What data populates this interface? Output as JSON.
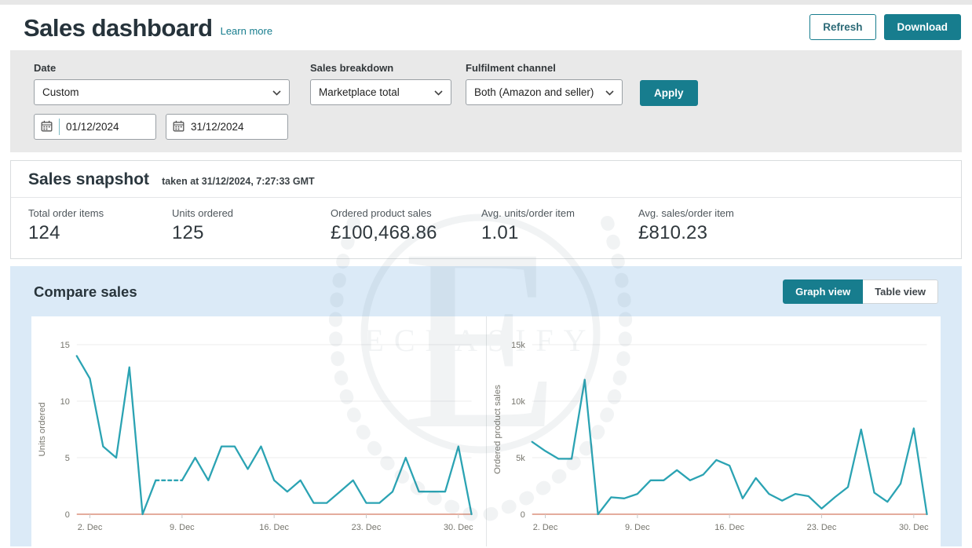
{
  "header": {
    "title": "Sales dashboard",
    "learn_more": "Learn more",
    "refresh_label": "Refresh",
    "download_label": "Download"
  },
  "filters": {
    "date": {
      "label": "Date",
      "selected": "Custom",
      "from": "01/12/2024",
      "to": "31/12/2024"
    },
    "sales_breakdown": {
      "label": "Sales breakdown",
      "selected": "Marketplace total"
    },
    "fulfilment_channel": {
      "label": "Fulfilment channel",
      "selected": "Both (Amazon and seller)"
    },
    "apply_label": "Apply"
  },
  "snapshot": {
    "title": "Sales snapshot",
    "taken_at": "taken at 31/12/2024, 7:27:33 GMT",
    "metrics": [
      {
        "label": "Total order items",
        "value": "124"
      },
      {
        "label": "Units ordered",
        "value": "125"
      },
      {
        "label": "Ordered product sales",
        "value": "£100,468.86"
      },
      {
        "label": "Avg. units/order item",
        "value": "1.01"
      },
      {
        "label": "Avg. sales/order item",
        "value": "£810.23"
      }
    ]
  },
  "compare": {
    "title": "Compare sales",
    "graph_view_label": "Graph view",
    "table_view_label": "Table view"
  },
  "watermark": {
    "monogram": "E",
    "text": "ECLASIFY"
  },
  "colors": {
    "accent": "#177d8e",
    "line": "#2ba3b3",
    "zero_baseline": "#e0a18f",
    "compare_panel_bg": "#dbeaf7",
    "filter_bg": "#e9e9e9"
  },
  "chart_data": [
    {
      "type": "line",
      "title": "Units ordered by day",
      "ylabel": "Units ordered",
      "x_unit": "day of December 2024",
      "x_days": [
        1,
        2,
        3,
        4,
        5,
        6,
        7,
        8,
        9,
        10,
        11,
        12,
        13,
        14,
        15,
        16,
        17,
        18,
        19,
        20,
        21,
        22,
        23,
        24,
        25,
        26,
        27,
        28,
        29,
        30,
        31
      ],
      "values": [
        14,
        12,
        6,
        5,
        13,
        0,
        3,
        3,
        3,
        5,
        3,
        6,
        6,
        4,
        6,
        3,
        2,
        3,
        1,
        1,
        2,
        3,
        1,
        1,
        2,
        5,
        2,
        2,
        2,
        6,
        0
      ],
      "ylim": [
        0,
        15
      ],
      "yticks": [
        {
          "value": 0,
          "label": "0"
        },
        {
          "value": 5,
          "label": "5"
        },
        {
          "value": 10,
          "label": "10"
        },
        {
          "value": 15,
          "label": "15"
        }
      ],
      "xticks": [
        {
          "day": 2,
          "label": "2. Dec"
        },
        {
          "day": 9,
          "label": "9. Dec"
        },
        {
          "day": 16,
          "label": "16. Dec"
        },
        {
          "day": 23,
          "label": "23. Dec"
        },
        {
          "day": 30,
          "label": "30. Dec"
        }
      ],
      "dashed_index_ranges": [
        [
          6,
          8
        ]
      ],
      "line_color": "#2ba3b3",
      "baseline_color": "#e0a18f",
      "grid": true,
      "legend": "none"
    },
    {
      "type": "line",
      "title": "Ordered product sales by day",
      "ylabel": "Ordered product sales",
      "x_unit": "day of December 2024",
      "x_days": [
        1,
        2,
        3,
        4,
        5,
        6,
        7,
        8,
        9,
        10,
        11,
        12,
        13,
        14,
        15,
        16,
        17,
        18,
        19,
        20,
        21,
        22,
        23,
        24,
        25,
        26,
        27,
        28,
        29,
        30,
        31
      ],
      "values": [
        6400,
        5600,
        4900,
        4900,
        11900,
        0,
        1500,
        1400,
        1800,
        3000,
        3000,
        3900,
        3000,
        3500,
        4800,
        4300,
        1400,
        3200,
        1800,
        1200,
        1800,
        1600,
        500,
        1500,
        2400,
        7500,
        1900,
        1100,
        2700,
        7600,
        0
      ],
      "ylim": [
        0,
        15000
      ],
      "yticks": [
        {
          "value": 0,
          "label": "0"
        },
        {
          "value": 5000,
          "label": "5k"
        },
        {
          "value": 10000,
          "label": "10k"
        },
        {
          "value": 15000,
          "label": "15k"
        }
      ],
      "xticks": [
        {
          "day": 2,
          "label": "2. Dec"
        },
        {
          "day": 9,
          "label": "9. Dec"
        },
        {
          "day": 16,
          "label": "16. Dec"
        },
        {
          "day": 23,
          "label": "23. Dec"
        },
        {
          "day": 30,
          "label": "30. Dec"
        }
      ],
      "dashed_index_ranges": [],
      "line_color": "#2ba3b3",
      "baseline_color": "#e0a18f",
      "grid": true,
      "legend": "none"
    }
  ]
}
